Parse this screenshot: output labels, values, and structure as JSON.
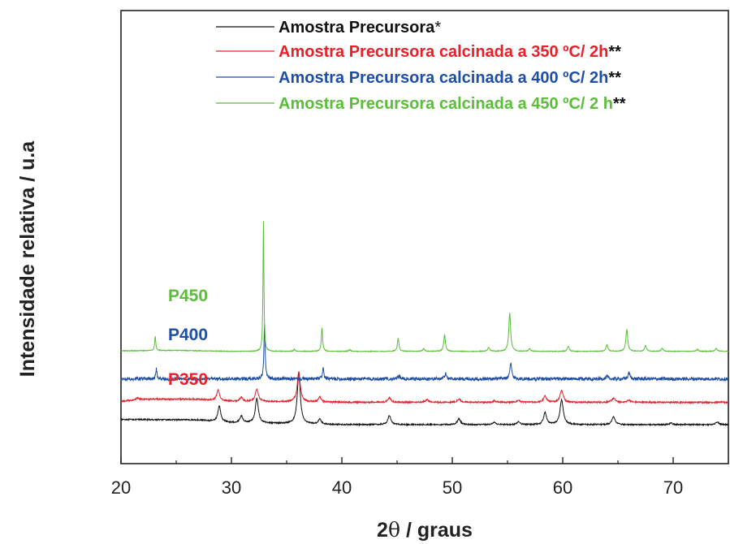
{
  "chart_data": {
    "type": "line",
    "xlabel_prefix": "2",
    "xlabel_symbol": "θ",
    "xlabel_suffix": " / graus",
    "ylabel": "Intensidade relativa / u.a",
    "xlim": [
      20,
      75
    ],
    "xticks": [
      "20",
      "30",
      "40",
      "50",
      "60",
      "70"
    ],
    "grid": false,
    "legend_position": "top-right",
    "series": [
      {
        "name": "Amostra Precursora",
        "mark": "*",
        "label": "",
        "color": "#111111",
        "baseline": 0.0,
        "drift": [
          [
            20,
            10
          ],
          [
            27,
            9
          ],
          [
            30,
            4
          ],
          [
            40,
            0
          ],
          [
            75,
            0
          ]
        ],
        "noise": 1.2,
        "peaks": [
          [
            28.9,
            30,
            0.3
          ],
          [
            30.9,
            13,
            0.3
          ],
          [
            32.3,
            48,
            0.32
          ],
          [
            36.1,
            100,
            0.32
          ],
          [
            38.0,
            10,
            0.3
          ],
          [
            44.3,
            18,
            0.32
          ],
          [
            50.6,
            11,
            0.35
          ],
          [
            53.8,
            5,
            0.3
          ],
          [
            56.0,
            6,
            0.3
          ],
          [
            58.4,
            23,
            0.32
          ],
          [
            59.9,
            48,
            0.35
          ],
          [
            64.6,
            15,
            0.35
          ],
          [
            69.8,
            3,
            0.35
          ],
          [
            74.0,
            5,
            0.35
          ]
        ]
      },
      {
        "name": "Amostra Precursora calcinada a 350 ºC/ 2h",
        "mark": "**",
        "label": "P350",
        "color": "#e8202a",
        "baseline": 43,
        "drift": [
          [
            20,
            2
          ],
          [
            22,
            6
          ],
          [
            27,
            6
          ],
          [
            30,
            2
          ],
          [
            40,
            0
          ],
          [
            75,
            0
          ]
        ],
        "noise": 1.4,
        "peaks": [
          [
            21.5,
            3,
            0.3
          ],
          [
            28.8,
            20,
            0.3
          ],
          [
            30.9,
            8,
            0.3
          ],
          [
            32.3,
            24,
            0.32
          ],
          [
            36.1,
            58,
            0.32
          ],
          [
            38.0,
            10,
            0.3
          ],
          [
            44.3,
            9,
            0.32
          ],
          [
            47.7,
            5,
            0.35
          ],
          [
            50.6,
            6,
            0.35
          ],
          [
            53.8,
            3,
            0.3
          ],
          [
            56.0,
            4,
            0.3
          ],
          [
            58.4,
            12,
            0.32
          ],
          [
            59.9,
            23,
            0.35
          ],
          [
            64.6,
            8,
            0.35
          ],
          [
            66.0,
            4,
            0.35
          ]
        ]
      },
      {
        "name": "Amostra Precursora calcinada a 400 ºC/ 2h",
        "mark": "**",
        "label": "P400",
        "color": "#1f4ea6",
        "baseline": 88,
        "drift": [
          [
            20,
            0
          ],
          [
            75,
            0
          ]
        ],
        "noise": 3.2,
        "peaks": [
          [
            23.2,
            20,
            0.12
          ],
          [
            33.0,
            105,
            0.13
          ],
          [
            38.3,
            22,
            0.14
          ],
          [
            45.2,
            6,
            0.2
          ],
          [
            49.4,
            10,
            0.2
          ],
          [
            55.3,
            30,
            0.2
          ],
          [
            64.0,
            5,
            0.2
          ],
          [
            66.0,
            12,
            0.2
          ]
        ]
      },
      {
        "name": "Amostra Precursora calcinada a 450 ºC/ 2 h",
        "mark": "**",
        "label": "P450",
        "color": "#5bbd3a",
        "baseline": 141,
        "drift": [
          [
            20,
            1
          ],
          [
            25,
            2
          ],
          [
            30,
            0
          ],
          [
            75,
            0
          ]
        ],
        "noise": 0.7,
        "peaks": [
          [
            23.1,
            27,
            0.12
          ],
          [
            32.9,
            250,
            0.1
          ],
          [
            35.7,
            4,
            0.15
          ],
          [
            38.2,
            45,
            0.14
          ],
          [
            40.7,
            3,
            0.2
          ],
          [
            45.1,
            25,
            0.17
          ],
          [
            47.4,
            5,
            0.2
          ],
          [
            49.3,
            32,
            0.18
          ],
          [
            53.3,
            8,
            0.2
          ],
          [
            55.2,
            74,
            0.2
          ],
          [
            57.0,
            5,
            0.2
          ],
          [
            60.5,
            10,
            0.2
          ],
          [
            64.0,
            13,
            0.2
          ],
          [
            65.8,
            42,
            0.2
          ],
          [
            67.5,
            11,
            0.2
          ],
          [
            69.0,
            6,
            0.2
          ],
          [
            72.2,
            4,
            0.2
          ],
          [
            73.9,
            6,
            0.2
          ]
        ]
      }
    ]
  }
}
